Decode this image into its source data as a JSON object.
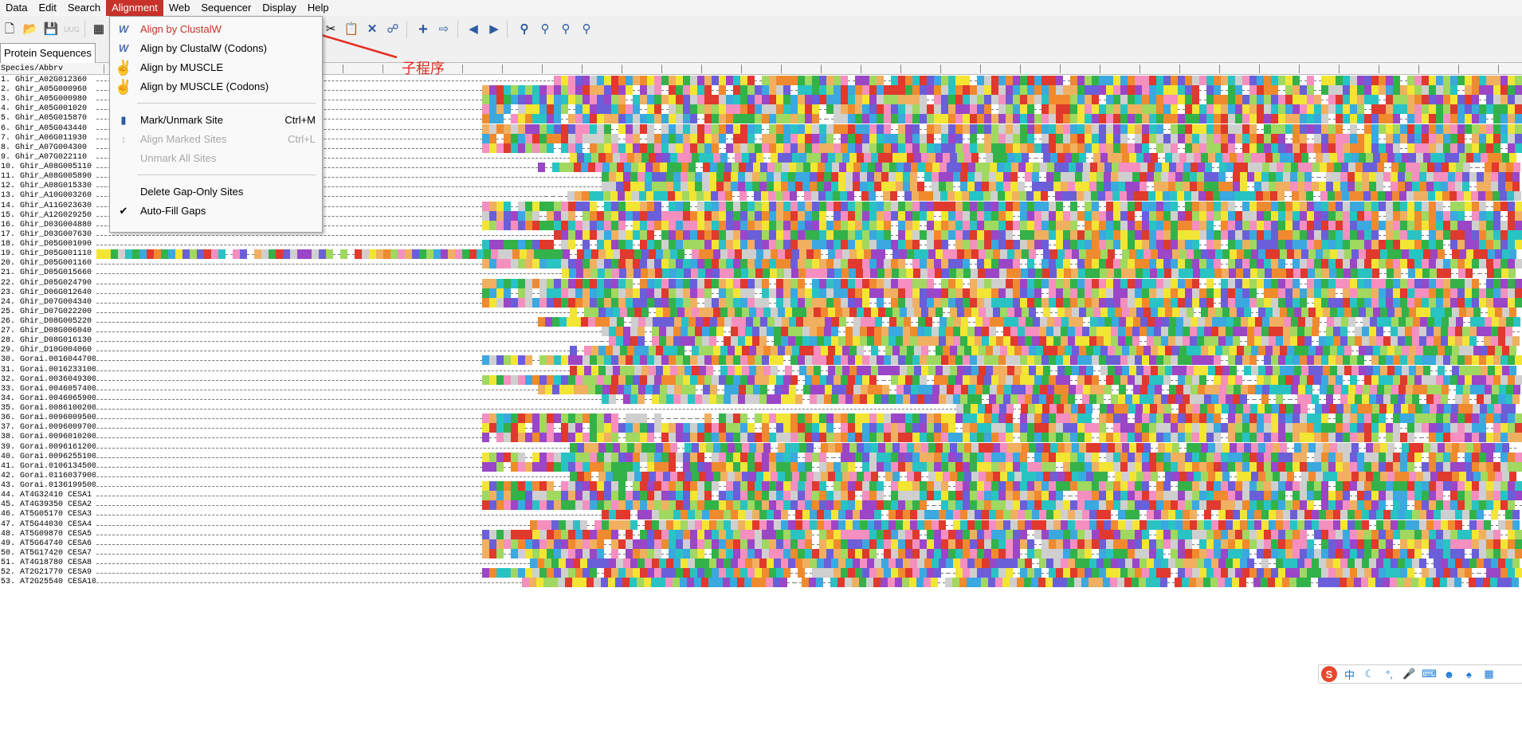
{
  "menubar": {
    "items": [
      "Data",
      "Edit",
      "Search",
      "Alignment",
      "Web",
      "Sequencer",
      "Display",
      "Help"
    ],
    "active": "Alignment"
  },
  "toolbar": {
    "icons": [
      "new-file-icon",
      "open-folder-icon",
      "save-icon",
      "uug-icon",
      "table-icon",
      "cut-icon",
      "paste-icon",
      "delete-x-icon",
      "find-replace-icon",
      "add-icon",
      "insert-icon",
      "prev-icon",
      "next-icon",
      "search-icon",
      "search-prev-icon",
      "search-next-icon",
      "search-settings-icon"
    ],
    "uug_label": "UUG"
  },
  "tabs": [
    {
      "label": "Protein Sequences"
    }
  ],
  "table": {
    "header": "Species/Abbrv",
    "rows": [
      "1.  Ghir_A02G012360",
      "2.  Ghir_A05G000960",
      "3.  Ghir_A05G000980",
      "4.  Ghir_A05G001020",
      "5.  Ghir_A05G015870",
      "6.  Ghir_A05G043440",
      "7.  Ghir_A06G011930",
      "8.  Ghir_A07G004300",
      "9.  Ghir_A07G022110",
      "10. Ghir_A08G005110",
      "11. Ghir_A08G005890",
      "12. Ghir_A08G015330",
      "13. Ghir_A10G003260",
      "14. Ghir_A11G023630",
      "15. Ghir_A12G029250",
      "16. Ghir_D03G004880",
      "17. Ghir_D03G007630",
      "18. Ghir_D05G001090",
      "19. Ghir_D05G001110",
      "20. Ghir_D05G001160",
      "21. Ghir_D05G015660",
      "22. Ghir_D05G024790",
      "23. Ghir_D06G012640",
      "24. Ghir_D07G004340",
      "25. Ghir_D07G022200",
      "26. Ghir_D08G005220",
      "27. Ghir_D08G006040",
      "28. Ghir_D08G016130",
      "29. Ghir_D10G004060",
      "30. Gorai.0016044700",
      "31. Gorai.0016233100",
      "32. Gorai.0036049300",
      "33. Gorai.0046057400",
      "34. Gorai.0046065900",
      "35. Gorai.0086100200",
      "36. Gorai.0096009500",
      "37. Gorai.0096009700",
      "38. Gorai.0096010200",
      "39. Gorai.0096161200",
      "40. Gorai.0096255100",
      "41. Gorai.0106134500",
      "42. Gorai.0116037900",
      "43. Gorai.0136199500",
      "44. AT4G32410 CESA1",
      "45. AT4G39350 CESA2",
      "46. AT5G05170 CESA3",
      "47. AT5G44030 CESA4",
      "48. AT5G09870 CESA5",
      "49. AT5G64740 CESA6",
      "50. AT5G17420 CESA7",
      "51. AT4G18780 CESA8",
      "52. AT2G21770 CESA9",
      "53. AT2G25540 CESA10"
    ]
  },
  "alignment": {
    "starts": [
      695,
      605,
      605,
      605,
      605,
      605,
      605,
      605,
      715,
      675,
      755,
      755,
      685,
      605,
      605,
      605,
      695,
      605,
      121,
      605,
      705,
      605,
      605,
      605,
      715,
      675,
      755,
      755,
      715,
      605,
      715,
      605,
      675,
      755,
      1200,
      605,
      605,
      605,
      715,
      605,
      605,
      715,
      605,
      605,
      605,
      755,
      665,
      605,
      605,
      605,
      665,
      605,
      655
    ],
    "colors": [
      "#3ba8e0",
      "#e0392d",
      "#f2e534",
      "#33b24a",
      "#9b46c6",
      "#f08a2e",
      "#f48fc0",
      "#29c3c3",
      "#a0d860",
      "#cfcfcf",
      "#6a5fd8",
      "#f0b060"
    ]
  },
  "dropdown": {
    "items": [
      {
        "label": "Align by ClustalW",
        "shortcut": "",
        "icon": "clustalw-icon",
        "state": "highlighted"
      },
      {
        "label": "Align by ClustalW (Codons)",
        "shortcut": "",
        "icon": "clustalw-codons-icon",
        "state": "normal"
      },
      {
        "label": "Align by MUSCLE",
        "shortcut": "",
        "icon": "muscle-icon",
        "state": "normal"
      },
      {
        "label": "Align by MUSCLE (Codons)",
        "shortcut": "",
        "icon": "muscle-codons-icon",
        "state": "normal"
      },
      {
        "label": "Mark/Unmark Site",
        "shortcut": "Ctrl+M",
        "icon": "mark-site-icon",
        "state": "normal"
      },
      {
        "label": "Align Marked Sites",
        "shortcut": "Ctrl+L",
        "icon": "align-marked-icon",
        "state": "disabled"
      },
      {
        "label": "Unmark All Sites",
        "shortcut": "",
        "icon": "",
        "state": "disabled"
      },
      {
        "label": "Delete Gap-Only Sites",
        "shortcut": "",
        "icon": "",
        "state": "normal"
      },
      {
        "label": "Auto-Fill Gaps",
        "shortcut": "",
        "icon": "check-icon",
        "state": "normal"
      }
    ]
  },
  "annotation": {
    "text": "子程序",
    "color": "#e52e24"
  },
  "ime": {
    "label": "中"
  }
}
